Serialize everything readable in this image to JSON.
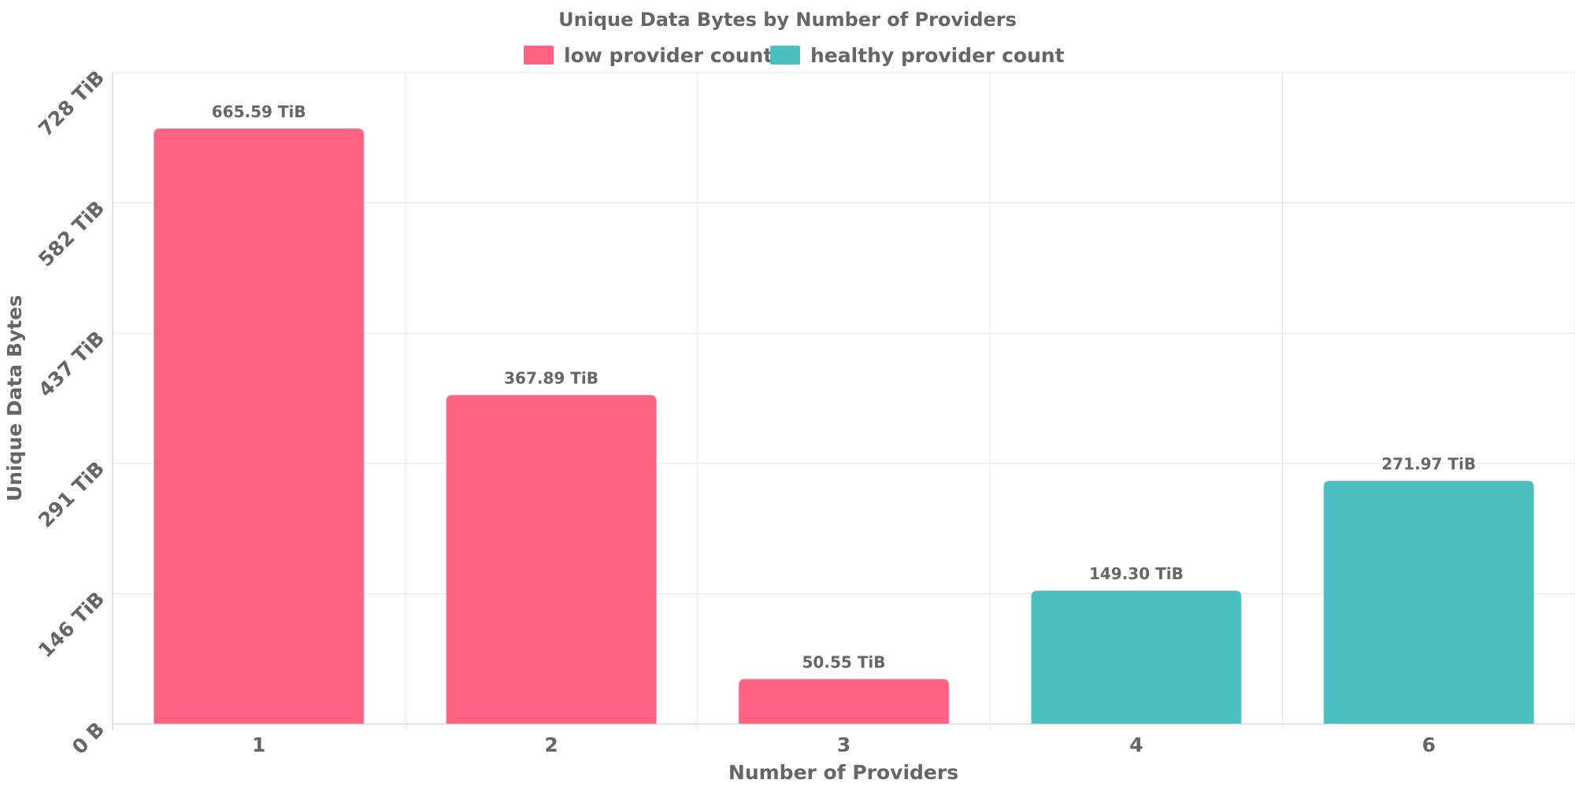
{
  "chart_data": {
    "type": "bar",
    "title": "Unique Data Bytes by Number of Providers",
    "xlabel": "Number of Providers",
    "ylabel": "Unique Data Bytes",
    "categories": [
      "1",
      "2",
      "3",
      "4",
      "6"
    ],
    "values": [
      665.59,
      367.89,
      50.55,
      149.3,
      271.97
    ],
    "value_unit": "TiB",
    "data_labels": [
      "665.59 TiB",
      "367.89 TiB",
      "50.55 TiB",
      "149.30 TiB",
      "271.97 TiB"
    ],
    "bar_groups": [
      "low",
      "low",
      "low",
      "healthy",
      "healthy"
    ],
    "ylim": [
      0,
      728
    ],
    "yticks": [
      0,
      145.6,
      291.2,
      436.8,
      582.4,
      728
    ],
    "ytick_labels": [
      "0 B",
      "146 TiB",
      "291 TiB",
      "437 TiB",
      "582 TiB",
      "728 TiB"
    ],
    "legend": [
      {
        "key": "low",
        "label": "low provider count",
        "color": "#ff6384"
      },
      {
        "key": "healthy",
        "label": "healthy provider count",
        "color": "#4bc0c0"
      }
    ],
    "legend_position": "top-center",
    "grid": true
  }
}
